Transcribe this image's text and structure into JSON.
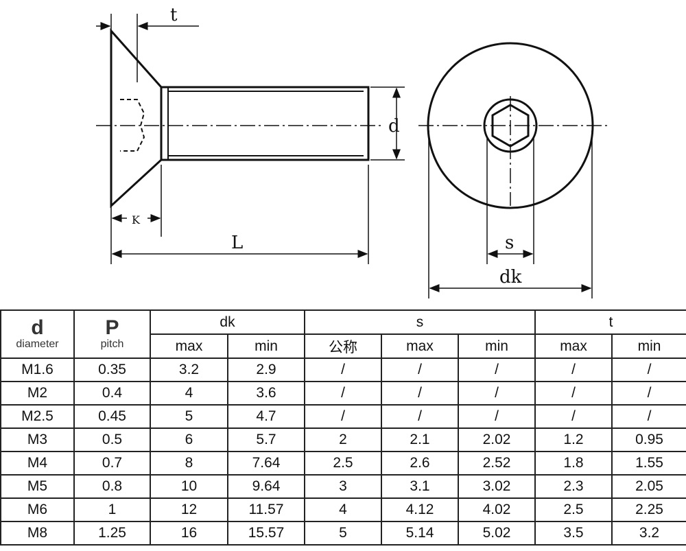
{
  "drawing": {
    "labels": {
      "t": "t",
      "d": "d",
      "k": "K",
      "l": "L",
      "s": "s",
      "dk": "dk"
    }
  },
  "table": {
    "col_d": {
      "symbol": "d",
      "label": "diameter"
    },
    "col_p": {
      "symbol": "P",
      "label": "pitch"
    },
    "groups": {
      "dk": "dk",
      "s": "s",
      "t": "t"
    },
    "sub": {
      "max": "max",
      "min": "min",
      "nominal": "公称"
    },
    "rows": [
      [
        "M1.6",
        "0.35",
        "3.2",
        "2.9",
        "/",
        "/",
        "/",
        "/",
        "/"
      ],
      [
        "M2",
        "0.4",
        "4",
        "3.6",
        "/",
        "/",
        "/",
        "/",
        "/"
      ],
      [
        "M2.5",
        "0.45",
        "5",
        "4.7",
        "/",
        "/",
        "/",
        "/",
        "/"
      ],
      [
        "M3",
        "0.5",
        "6",
        "5.7",
        "2",
        "2.1",
        "2.02",
        "1.2",
        "0.95"
      ],
      [
        "M4",
        "0.7",
        "8",
        "7.64",
        "2.5",
        "2.6",
        "2.52",
        "1.8",
        "1.55"
      ],
      [
        "M5",
        "0.8",
        "10",
        "9.64",
        "3",
        "3.1",
        "3.02",
        "2.3",
        "2.05"
      ],
      [
        "M6",
        "1",
        "12",
        "11.57",
        "4",
        "4.12",
        "4.02",
        "2.5",
        "2.25"
      ],
      [
        "M8",
        "1.25",
        "16",
        "15.57",
        "5",
        "5.14",
        "5.02",
        "3.5",
        "3.2"
      ]
    ]
  }
}
